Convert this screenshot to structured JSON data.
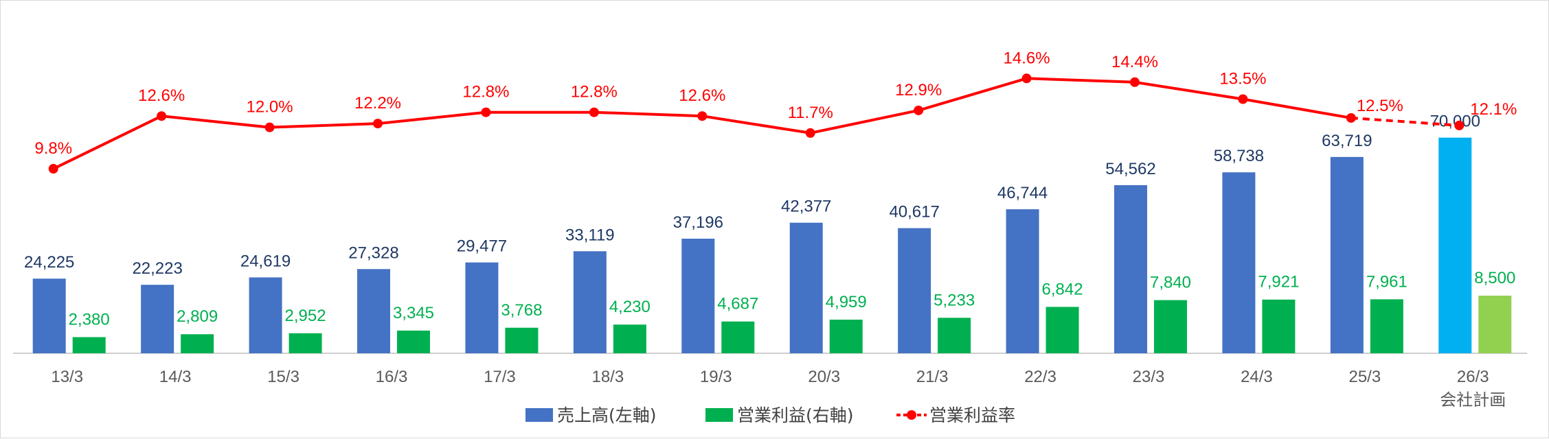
{
  "chart_data": {
    "type": "bar",
    "categories": [
      "13/3",
      "14/3",
      "15/3",
      "16/3",
      "17/3",
      "18/3",
      "19/3",
      "20/3",
      "21/3",
      "22/3",
      "23/3",
      "24/3",
      "25/3",
      "26/3"
    ],
    "category_sublabels": [
      "",
      "",
      "",
      "",
      "",
      "",
      "",
      "",
      "",
      "",
      "",
      "",
      "",
      "会社計画"
    ],
    "series": [
      {
        "name": "売上高(左軸)",
        "kind": "bar",
        "axis": "left",
        "values": [
          24225,
          22223,
          24619,
          27328,
          29477,
          33119,
          37196,
          42377,
          40617,
          46744,
          54562,
          58738,
          63719,
          70000
        ],
        "labels": [
          "24,225",
          "22,223",
          "24,619",
          "27,328",
          "29,477",
          "33,119",
          "37,196",
          "42,377",
          "40,617",
          "46,744",
          "54,562",
          "58,738",
          "63,719",
          "70,000"
        ],
        "color": "#4472c4",
        "plan_color": "#00b0f0"
      },
      {
        "name": "営業利益(右軸)",
        "kind": "bar",
        "axis": "right",
        "values": [
          2380,
          2809,
          2952,
          3345,
          3768,
          4230,
          4687,
          4959,
          5233,
          6842,
          7840,
          7921,
          7961,
          8500
        ],
        "labels": [
          "2,380",
          "2,809",
          "2,952",
          "3,345",
          "3,768",
          "4,230",
          "4,687",
          "4,959",
          "5,233",
          "6,842",
          "7,840",
          "7,921",
          "7,961",
          "8,500"
        ],
        "color": "#00b050",
        "plan_color": "#92d050"
      },
      {
        "name": "営業利益率",
        "kind": "line",
        "values": [
          9.8,
          12.6,
          12.0,
          12.2,
          12.8,
          12.8,
          12.6,
          11.7,
          12.9,
          14.6,
          14.4,
          13.5,
          12.5,
          12.1
        ],
        "labels": [
          "9.8%",
          "12.6%",
          "12.0%",
          "12.2%",
          "12.8%",
          "12.8%",
          "12.6%",
          "11.7%",
          "12.9%",
          "14.6%",
          "14.4%",
          "13.5%",
          "12.5%",
          "12.1%"
        ],
        "color": "#ff0000",
        "dashed_last_segment": true
      }
    ],
    "left_axis_range": [
      0,
      110000
    ],
    "right_axis_range": [
      0,
      50000
    ],
    "margin_axis_range": [
      0,
      18
    ],
    "gridlines": false,
    "legend_position": "bottom"
  }
}
